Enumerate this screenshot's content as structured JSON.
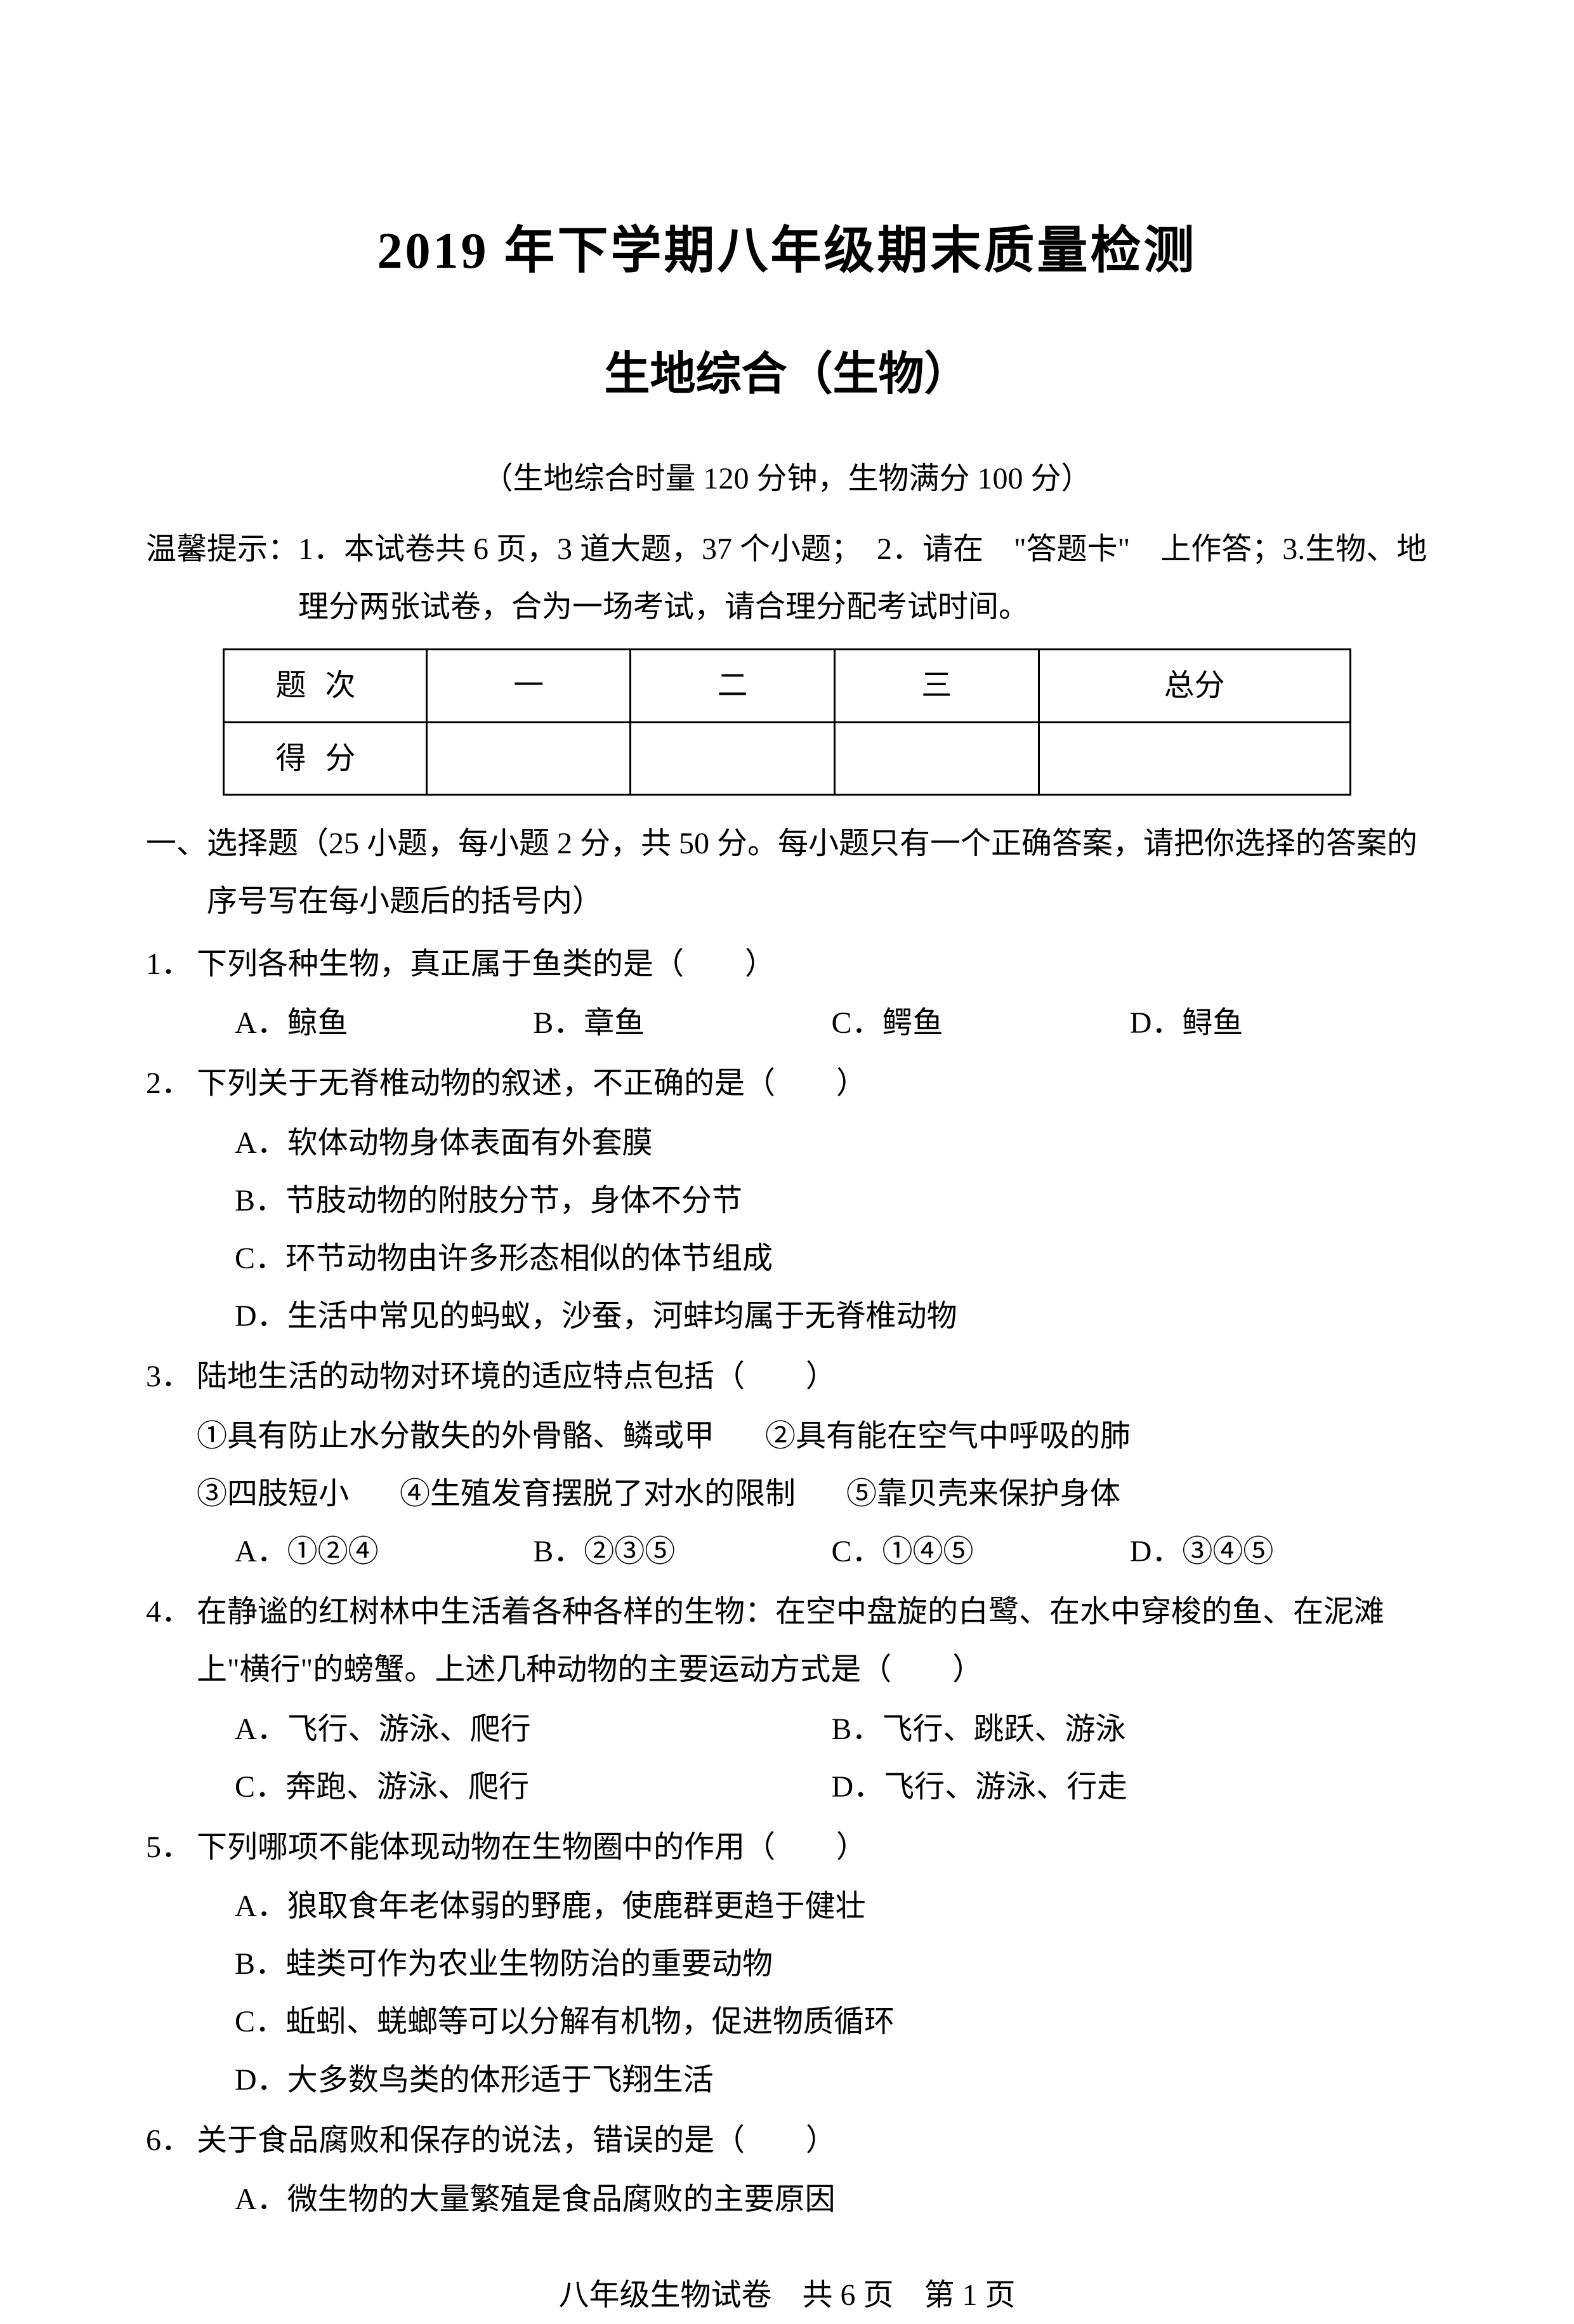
{
  "title": "2019 年下学期八年级期末质量检测",
  "subtitle": "生地综合（生物）",
  "duration": "（生地综合时量 120 分钟，生物满分 100 分）",
  "tips_label": "温馨提示：",
  "tips_content": "1．本试卷共 6 页，3 道大题，37 个小题；　2．请在　\"答题卡\"　上作答；3.生物、地理分两张试卷，合为一场考试，请合理分配考试时间。",
  "score_table": {
    "row1": {
      "label": "题次",
      "c1": "一",
      "c2": "二",
      "c3": "三",
      "c4": "总分"
    },
    "row2": {
      "label": "得分",
      "c1": "",
      "c2": "",
      "c3": "",
      "c4": ""
    }
  },
  "section1": {
    "num": "一、",
    "text": "选择题（25 小题，每小题 2 分，共 50 分。每小题只有一个正确答案，请把你选择的答案的序号写在每小题后的括号内）"
  },
  "q1": {
    "num": "1．",
    "stem": "下列各种生物，真正属于鱼类的是（　　）",
    "a": "A．鲸鱼",
    "b": "B．章鱼",
    "c": "C．鳄鱼",
    "d": "D．鲟鱼"
  },
  "q2": {
    "num": "2．",
    "stem": "下列关于无脊椎动物的叙述，不正确的是（　　）",
    "a": "A．软体动物身体表面有外套膜",
    "b": "B．节肢动物的附肢分节，身体不分节",
    "c": "C．环节动物由许多形态相似的体节组成",
    "d": "D．生活中常见的蚂蚁，沙蚕，河蚌均属于无脊椎动物"
  },
  "q3": {
    "num": "3．",
    "stem": "陆地生活的动物对环境的适应特点包括（　　）",
    "i1": "①具有防止水分散失的外骨骼、鳞或甲",
    "i2": "②具有能在空气中呼吸的肺",
    "i3": "③四肢短小",
    "i4": "④生殖发育摆脱了对水的限制",
    "i5": "⑤靠贝壳来保护身体",
    "a": "A．①②④",
    "b": "B．②③⑤",
    "c": "C．①④⑤",
    "d": "D．③④⑤"
  },
  "q4": {
    "num": "4．",
    "stem": "在静谧的红树林中生活着各种各样的生物：在空中盘旋的白鹭、在水中穿梭的鱼、在泥滩上\"横行\"的螃蟹。上述几种动物的主要运动方式是（　　）",
    "a": "A．飞行、游泳、爬行",
    "b": "B．飞行、跳跃、游泳",
    "c": "C．奔跑、游泳、爬行",
    "d": "D．飞行、游泳、行走"
  },
  "q5": {
    "num": "5．",
    "stem": "下列哪项不能体现动物在生物圈中的作用（　　）",
    "a": "A．狼取食年老体弱的野鹿，使鹿群更趋于健壮",
    "b": "B．蛙类可作为农业生物防治的重要动物",
    "c": "C．蚯蚓、蜣螂等可以分解有机物，促进物质循环",
    "d": "D．大多数鸟类的体形适于飞翔生活"
  },
  "q6": {
    "num": "6．",
    "stem": "关于食品腐败和保存的说法，错误的是（　　）",
    "a": "A．微生物的大量繁殖是食品腐败的主要原因"
  },
  "footer": "八年级生物试卷　共 6 页　第 1 页"
}
